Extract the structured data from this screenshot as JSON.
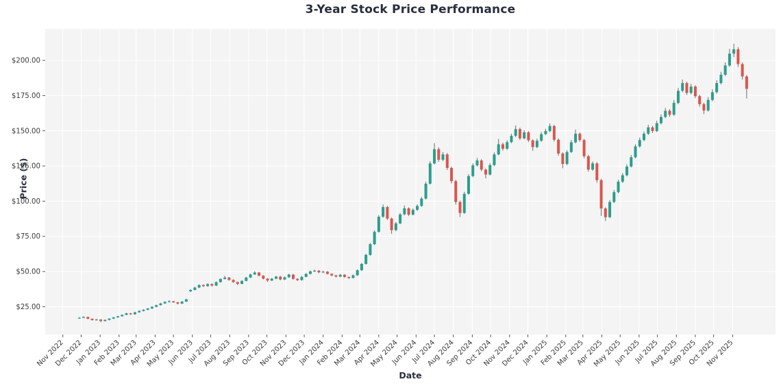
{
  "chart_data": {
    "type": "candlestick",
    "title": "3-Year Stock Price Performance",
    "xlabel": "Date",
    "ylabel": "Price ($)",
    "legend": null,
    "grid": true,
    "plot_bg_color": "#f4f4f5",
    "grid_color": "#ffffff",
    "up_color": "#2a9e8c",
    "down_color": "#db554b",
    "wick_color": "#4a4a4a",
    "tick_label_color": "#3a3a3a",
    "title_color": "#2a2e3d",
    "ylim": [
      5,
      222
    ],
    "xlim": [
      "2022-10-01",
      "2026-01-04"
    ],
    "y_ticks": [
      {
        "label": "$25.00",
        "value": 25
      },
      {
        "label": "$50.00",
        "value": 50
      },
      {
        "label": "$75.00",
        "value": 75
      },
      {
        "label": "$100.00",
        "value": 100
      },
      {
        "label": "$125.00",
        "value": 125
      },
      {
        "label": "$150.00",
        "value": 150
      },
      {
        "label": "$175.00",
        "value": 175
      },
      {
        "label": "$200.00",
        "value": 200
      }
    ],
    "x_ticks": [
      {
        "label": "Nov 2022",
        "month": "2022-11"
      },
      {
        "label": "Dec 2022",
        "month": "2022-12"
      },
      {
        "label": "Jan 2023",
        "month": "2023-01"
      },
      {
        "label": "Feb 2023",
        "month": "2023-02"
      },
      {
        "label": "Mar 2023",
        "month": "2023-03"
      },
      {
        "label": "Apr 2023",
        "month": "2023-04"
      },
      {
        "label": "May 2023",
        "month": "2023-05"
      },
      {
        "label": "Jun 2023",
        "month": "2023-06"
      },
      {
        "label": "Jul 2023",
        "month": "2023-07"
      },
      {
        "label": "Aug 2023",
        "month": "2023-08"
      },
      {
        "label": "Sep 2023",
        "month": "2023-09"
      },
      {
        "label": "Oct 2023",
        "month": "2023-10"
      },
      {
        "label": "Nov 2023",
        "month": "2023-11"
      },
      {
        "label": "Dec 2023",
        "month": "2023-12"
      },
      {
        "label": "Jan 2024",
        "month": "2024-01"
      },
      {
        "label": "Feb 2024",
        "month": "2024-02"
      },
      {
        "label": "Mar 2024",
        "month": "2024-03"
      },
      {
        "label": "Apr 2024",
        "month": "2024-04"
      },
      {
        "label": "May 2024",
        "month": "2024-05"
      },
      {
        "label": "Jun 2024",
        "month": "2024-06"
      },
      {
        "label": "Jul 2024",
        "month": "2024-07"
      },
      {
        "label": "Aug 2024",
        "month": "2024-08"
      },
      {
        "label": "Sep 2024",
        "month": "2024-09"
      },
      {
        "label": "Oct 2024",
        "month": "2024-10"
      },
      {
        "label": "Nov 2024",
        "month": "2024-11"
      },
      {
        "label": "Dec 2024",
        "month": "2024-12"
      },
      {
        "label": "Jan 2025",
        "month": "2025-01"
      },
      {
        "label": "Feb 2025",
        "month": "2025-02"
      },
      {
        "label": "Mar 2025",
        "month": "2025-03"
      },
      {
        "label": "Apr 2025",
        "month": "2025-04"
      },
      {
        "label": "May 2025",
        "month": "2025-05"
      },
      {
        "label": "Jun 2025",
        "month": "2025-06"
      },
      {
        "label": "Jul 2025",
        "month": "2025-07"
      },
      {
        "label": "Aug 2025",
        "month": "2025-08"
      },
      {
        "label": "Sep 2025",
        "month": "2025-09"
      },
      {
        "label": "Oct 2025",
        "month": "2025-10"
      },
      {
        "label": "Nov 2025",
        "month": "2025-11"
      }
    ],
    "series_start_date": "2022-11-28",
    "interval_days": 7,
    "ohlc_fields": [
      "open",
      "high",
      "low",
      "close"
    ],
    "candles": [
      [
        16.8,
        17.6,
        16.4,
        17.1
      ],
      [
        17.1,
        18.1,
        16.8,
        17.7
      ],
      [
        17.7,
        17.9,
        16.1,
        16.4
      ],
      [
        16.4,
        16.7,
        15.1,
        15.5
      ],
      [
        15.5,
        16.3,
        15.2,
        15.9
      ],
      [
        15.9,
        16.1,
        13.9,
        14.8
      ],
      [
        14.8,
        15.9,
        14.5,
        15.6
      ],
      [
        15.6,
        16.8,
        15.3,
        16.5
      ],
      [
        16.5,
        17.7,
        16.2,
        17.4
      ],
      [
        17.4,
        18.5,
        17.1,
        18.2
      ],
      [
        18.2,
        19.5,
        17.9,
        19.2
      ],
      [
        19.2,
        20.7,
        18.9,
        20.3
      ],
      [
        20.3,
        20.6,
        19.2,
        19.6
      ],
      [
        19.6,
        21.4,
        19.3,
        21.0
      ],
      [
        21.0,
        22.4,
        20.7,
        22.0
      ],
      [
        22.0,
        23.2,
        21.6,
        22.8
      ],
      [
        22.8,
        24.1,
        22.5,
        23.7
      ],
      [
        23.7,
        25.3,
        23.4,
        24.9
      ],
      [
        24.9,
        26.5,
        24.6,
        26.1
      ],
      [
        26.1,
        27.7,
        25.8,
        27.3
      ],
      [
        27.3,
        28.9,
        27.0,
        28.4
      ],
      [
        28.4,
        29.6,
        28.0,
        28.8
      ],
      [
        28.8,
        29.2,
        27.7,
        28.1
      ],
      [
        28.1,
        28.4,
        26.6,
        27.2
      ],
      [
        27.2,
        29.0,
        26.9,
        28.6
      ],
      [
        28.6,
        30.7,
        28.3,
        30.2
      ],
      [
        35.9,
        37.4,
        35.4,
        36.9
      ],
      [
        36.9,
        39.1,
        36.5,
        38.6
      ],
      [
        38.6,
        40.9,
        38.2,
        40.4
      ],
      [
        40.4,
        40.9,
        39.0,
        39.6
      ],
      [
        39.6,
        41.6,
        39.2,
        41.1
      ],
      [
        41.1,
        41.5,
        39.3,
        40.0
      ],
      [
        40.0,
        42.9,
        39.7,
        42.4
      ],
      [
        42.4,
        45.2,
        42.1,
        44.7
      ],
      [
        44.7,
        46.9,
        44.3,
        45.7
      ],
      [
        45.7,
        46.1,
        43.5,
        44.0
      ],
      [
        44.0,
        44.4,
        41.9,
        42.5
      ],
      [
        42.5,
        42.9,
        40.3,
        41.2
      ],
      [
        41.2,
        43.8,
        40.9,
        43.3
      ],
      [
        43.3,
        46.2,
        43.0,
        45.7
      ],
      [
        45.7,
        48.4,
        45.4,
        47.9
      ],
      [
        47.9,
        50.2,
        47.5,
        49.3
      ],
      [
        49.3,
        49.7,
        46.5,
        47.0
      ],
      [
        47.0,
        47.4,
        44.4,
        44.9
      ],
      [
        44.9,
        45.3,
        42.6,
        43.6
      ],
      [
        43.6,
        45.4,
        43.2,
        44.9
      ],
      [
        44.9,
        46.9,
        44.5,
        46.4
      ],
      [
        46.4,
        46.8,
        43.8,
        44.3
      ],
      [
        44.3,
        46.4,
        43.9,
        45.9
      ],
      [
        45.9,
        48.4,
        45.5,
        47.8
      ],
      [
        47.8,
        48.2,
        44.2,
        44.8
      ],
      [
        44.8,
        45.2,
        43.3,
        43.9
      ],
      [
        43.9,
        46.8,
        43.5,
        46.2
      ],
      [
        46.2,
        48.9,
        45.8,
        48.3
      ],
      [
        48.3,
        50.7,
        47.9,
        50.1
      ],
      [
        50.1,
        51.4,
        49.6,
        50.6
      ],
      [
        50.6,
        51.0,
        48.8,
        49.4
      ],
      [
        49.4,
        50.6,
        48.9,
        49.9
      ],
      [
        49.9,
        50.3,
        47.8,
        48.3
      ],
      [
        48.3,
        48.7,
        46.6,
        47.2
      ],
      [
        47.2,
        47.7,
        45.8,
        46.4
      ],
      [
        46.4,
        48.2,
        46.0,
        47.7
      ],
      [
        47.7,
        48.1,
        45.6,
        46.1
      ],
      [
        46.1,
        46.5,
        44.7,
        45.4
      ],
      [
        45.4,
        47.9,
        45.0,
        47.3
      ],
      [
        47.3,
        51.5,
        46.9,
        50.9
      ],
      [
        50.9,
        56.1,
        50.4,
        55.4
      ],
      [
        55.4,
        62.6,
        54.9,
        61.8
      ],
      [
        61.8,
        70.3,
        61.2,
        69.4
      ],
      [
        69.4,
        79.3,
        68.8,
        78.2
      ],
      [
        78.2,
        90.1,
        77.6,
        88.9
      ],
      [
        88.9,
        97.6,
        88.2,
        95.8
      ],
      [
        95.8,
        96.6,
        86.6,
        87.6
      ],
      [
        87.6,
        88.4,
        76.8,
        79.4
      ],
      [
        79.4,
        85.2,
        78.6,
        84.2
      ],
      [
        84.2,
        91.6,
        83.6,
        90.6
      ],
      [
        90.6,
        96.9,
        90.0,
        94.9
      ],
      [
        94.9,
        95.6,
        89.4,
        90.4
      ],
      [
        90.4,
        94.8,
        89.8,
        93.8
      ],
      [
        93.8,
        97.7,
        93.1,
        96.6
      ],
      [
        96.6,
        102.9,
        96.0,
        101.8
      ],
      [
        101.8,
        113.8,
        101.2,
        112.4
      ],
      [
        112.4,
        128.4,
        111.8,
        126.8
      ],
      [
        126.8,
        141.2,
        126.0,
        136.9
      ],
      [
        136.9,
        138.2,
        127.9,
        129.4
      ],
      [
        129.4,
        134.8,
        128.4,
        133.2
      ],
      [
        133.2,
        134.2,
        122.2,
        123.6
      ],
      [
        123.6,
        124.6,
        112.6,
        114.2
      ],
      [
        114.2,
        115.2,
        97.6,
        99.4
      ],
      [
        99.4,
        100.4,
        88.7,
        91.6
      ],
      [
        91.6,
        106.6,
        90.9,
        105.2
      ],
      [
        105.2,
        119.2,
        104.6,
        117.8
      ],
      [
        117.8,
        126.9,
        117.0,
        125.4
      ],
      [
        125.4,
        130.6,
        124.6,
        128.9
      ],
      [
        128.9,
        129.8,
        121.2,
        122.4
      ],
      [
        122.4,
        123.2,
        116.2,
        118.9
      ],
      [
        118.9,
        126.9,
        118.2,
        125.6
      ],
      [
        125.6,
        134.6,
        124.9,
        133.2
      ],
      [
        133.2,
        144.2,
        132.6,
        140.4
      ],
      [
        140.4,
        141.6,
        135.9,
        137.2
      ],
      [
        137.2,
        143.2,
        136.4,
        141.9
      ],
      [
        141.9,
        147.9,
        141.2,
        146.4
      ],
      [
        146.4,
        153.8,
        145.6,
        151.2
      ],
      [
        151.2,
        152.2,
        143.4,
        144.6
      ],
      [
        144.6,
        150.4,
        143.9,
        148.9
      ],
      [
        148.9,
        149.8,
        142.0,
        143.2
      ],
      [
        143.2,
        143.9,
        135.8,
        138.4
      ],
      [
        138.4,
        144.4,
        137.6,
        142.9
      ],
      [
        142.9,
        149.2,
        142.2,
        147.6
      ],
      [
        147.6,
        151.4,
        146.9,
        149.8
      ],
      [
        149.8,
        155.2,
        149.0,
        153.4
      ],
      [
        153.4,
        154.2,
        142.4,
        143.6
      ],
      [
        143.6,
        144.6,
        132.2,
        133.8
      ],
      [
        133.8,
        134.8,
        123.4,
        126.4
      ],
      [
        126.4,
        136.2,
        125.6,
        134.9
      ],
      [
        134.9,
        143.4,
        134.2,
        141.8
      ],
      [
        141.8,
        150.8,
        141.0,
        147.9
      ],
      [
        147.9,
        148.9,
        142.2,
        143.4
      ],
      [
        143.4,
        144.2,
        130.4,
        131.9
      ],
      [
        131.9,
        132.9,
        120.9,
        122.4
      ],
      [
        122.4,
        128.2,
        121.6,
        126.8
      ],
      [
        126.8,
        127.8,
        113.2,
        114.9
      ],
      [
        114.9,
        115.9,
        89.5,
        94.8
      ],
      [
        94.8,
        95.6,
        85.9,
        88.6
      ],
      [
        88.6,
        100.8,
        87.9,
        99.4
      ],
      [
        99.4,
        107.9,
        98.6,
        106.4
      ],
      [
        106.4,
        115.2,
        105.6,
        113.8
      ],
      [
        113.8,
        119.9,
        112.9,
        118.4
      ],
      [
        118.4,
        126.2,
        117.6,
        124.6
      ],
      [
        124.6,
        132.8,
        123.9,
        131.2
      ],
      [
        131.2,
        140.4,
        130.4,
        138.9
      ],
      [
        138.9,
        145.2,
        138.0,
        143.4
      ],
      [
        143.4,
        149.6,
        142.6,
        147.9
      ],
      [
        147.9,
        154.2,
        147.0,
        152.4
      ],
      [
        152.4,
        153.4,
        148.4,
        149.8
      ],
      [
        149.8,
        157.2,
        149.0,
        155.4
      ],
      [
        155.4,
        161.6,
        154.6,
        159.8
      ],
      [
        159.8,
        166.2,
        159.0,
        164.2
      ],
      [
        164.2,
        165.4,
        159.9,
        161.4
      ],
      [
        161.4,
        171.8,
        160.6,
        169.8
      ],
      [
        169.8,
        180.4,
        168.9,
        178.4
      ],
      [
        178.4,
        186.4,
        177.4,
        183.9
      ],
      [
        183.9,
        184.9,
        175.4,
        176.9
      ],
      [
        176.9,
        183.4,
        175.9,
        181.4
      ],
      [
        181.4,
        182.4,
        173.2,
        174.6
      ],
      [
        174.6,
        175.6,
        167.2,
        168.9
      ],
      [
        168.9,
        169.9,
        161.8,
        164.4
      ],
      [
        164.4,
        173.9,
        163.6,
        171.9
      ],
      [
        171.9,
        179.4,
        170.9,
        177.4
      ],
      [
        177.4,
        185.9,
        176.4,
        183.9
      ],
      [
        183.9,
        191.9,
        182.9,
        189.8
      ],
      [
        189.8,
        198.6,
        188.9,
        196.4
      ],
      [
        196.4,
        208.2,
        195.4,
        204.8
      ],
      [
        204.8,
        211.8,
        202.4,
        207.9
      ],
      [
        207.9,
        209.4,
        195.4,
        197.4
      ],
      [
        197.4,
        198.6,
        186.4,
        188.6
      ],
      [
        188.6,
        189.6,
        172.9,
        179.8
      ]
    ]
  }
}
